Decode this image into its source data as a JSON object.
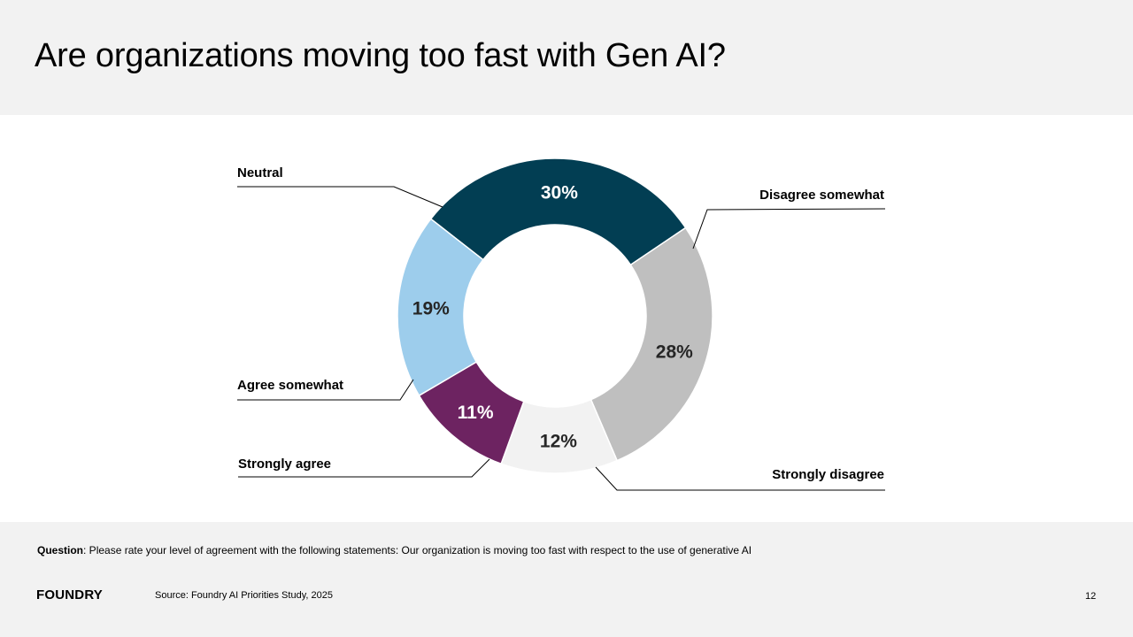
{
  "title": "Are organizations moving too fast with Gen AI?",
  "chart_data": {
    "type": "pie",
    "variant": "donut",
    "title": "",
    "slices": [
      {
        "name": "Neutral",
        "value": 30,
        "label": "30%",
        "color": "#023e53",
        "label_color": "#ffffff"
      },
      {
        "name": "Disagree somewhat",
        "value": 28,
        "label": "28%",
        "color": "#bfbfbf",
        "label_color": "#262626"
      },
      {
        "name": "Strongly disagree",
        "value": 12,
        "label": "12%",
        "color": "#f2f2f2",
        "label_color": "#262626"
      },
      {
        "name": "Strongly agree",
        "value": 11,
        "label": "11%",
        "color": "#6d2361",
        "label_color": "#ffffff"
      },
      {
        "name": "Agree somewhat",
        "value": 19,
        "label": "19%",
        "color": "#9dcdec",
        "label_color": "#262626"
      }
    ]
  },
  "footer": {
    "question_label": "Question",
    "question_text": ": Please rate your level of agreement with the following statements:  Our organization is moving too fast with respect to the use of generative AI",
    "source": "Source: Foundry AI Priorities Study, 2025",
    "logo": "FOUNDRY",
    "page_number": "12"
  }
}
